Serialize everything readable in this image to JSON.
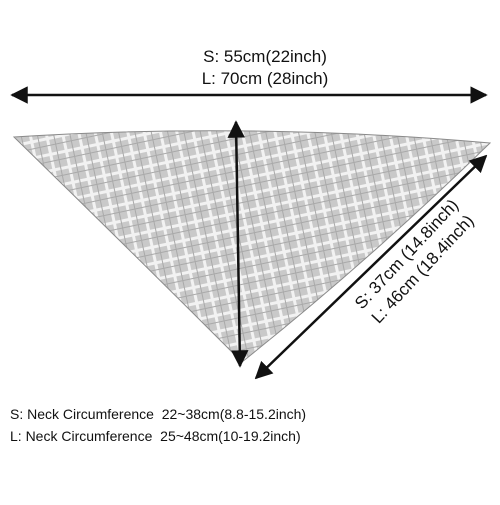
{
  "top_size": {
    "small": "S: 55cm(22inch)",
    "large": "L: 70cm (28inch)"
  },
  "side_size": {
    "small": "S: 37cm (14.8inch)",
    "large": "L: 46cm (18.4inch)"
  },
  "neck": {
    "small": "S: Neck Circumference  22~38cm(8.8-15.2inch)",
    "large": "L: Neck Circumference  25~48cm(10-19.2inch)"
  }
}
